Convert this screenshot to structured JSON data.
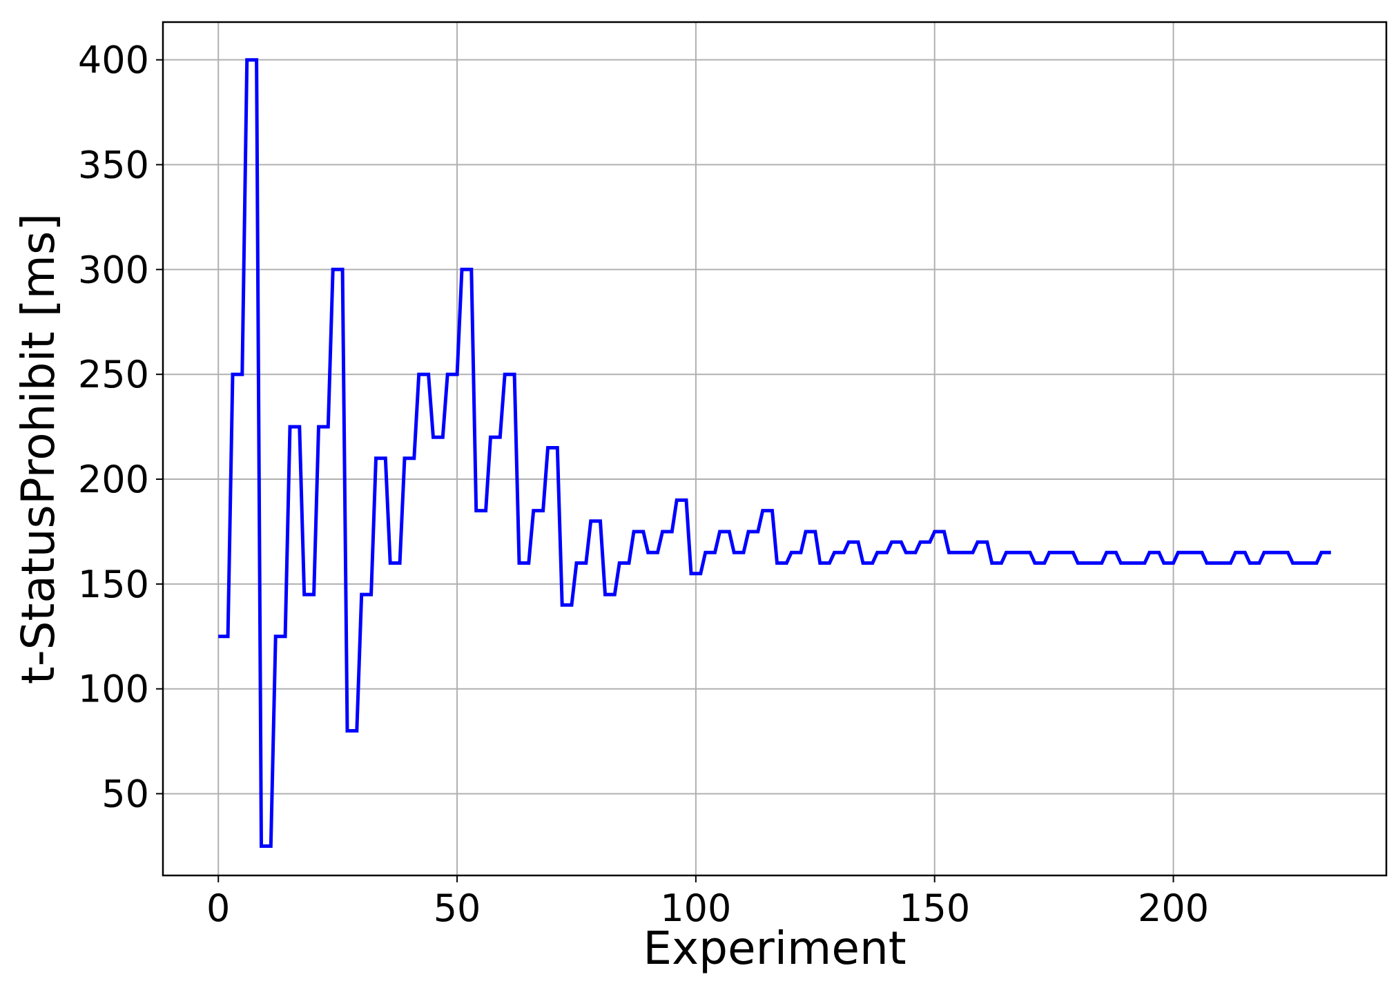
{
  "chart_data": {
    "type": "line",
    "title": "",
    "xlabel": "Experiment",
    "ylabel": "t-StatusProhibit [ms]",
    "xlim": [
      -11.6,
      244.6
    ],
    "ylim": [
      11,
      418
    ],
    "xticks": [
      0,
      50,
      100,
      150,
      200
    ],
    "yticks": [
      50,
      100,
      150,
      200,
      250,
      300,
      350,
      400
    ],
    "grid": true,
    "legend": "none",
    "series": [
      {
        "color": "#0000ff",
        "x": [
          0,
          2,
          3,
          5,
          6,
          8,
          9,
          11,
          12,
          14,
          15,
          17,
          18,
          20,
          21,
          23,
          24,
          26,
          27,
          29,
          30,
          32,
          33,
          35,
          36,
          38,
          39,
          41,
          42,
          44,
          45,
          47,
          48,
          50,
          51,
          53,
          54,
          56,
          57,
          59,
          60,
          62,
          63,
          65,
          66,
          68,
          69,
          71,
          72,
          74,
          75,
          77,
          78,
          80,
          81,
          83,
          84,
          86,
          87,
          89,
          90,
          92,
          93,
          95,
          96,
          98,
          99,
          101,
          102,
          104,
          105,
          107,
          108,
          110,
          111,
          113,
          114,
          116,
          117,
          119,
          120,
          122,
          123,
          125,
          126,
          128,
          129,
          131,
          132,
          134,
          135,
          137,
          138,
          140,
          141,
          143,
          144,
          146,
          147,
          149,
          150,
          152,
          153,
          155,
          156,
          158,
          159,
          161,
          162,
          164,
          165,
          167,
          168,
          170,
          171,
          173,
          174,
          176,
          177,
          179,
          180,
          182,
          183,
          185,
          186,
          188,
          189,
          191,
          192,
          194,
          195,
          197,
          198,
          200,
          201,
          203,
          204,
          206,
          207,
          209,
          210,
          212,
          213,
          215,
          216,
          218,
          219,
          221,
          222,
          224,
          225,
          227,
          228,
          230,
          231,
          233
        ],
        "y": [
          125,
          125,
          250,
          250,
          400,
          400,
          25,
          25,
          125,
          125,
          225,
          225,
          145,
          145,
          225,
          225,
          300,
          300,
          80,
          80,
          145,
          145,
          210,
          210,
          160,
          160,
          210,
          210,
          250,
          250,
          220,
          220,
          250,
          250,
          300,
          300,
          185,
          185,
          220,
          220,
          250,
          250,
          160,
          160,
          185,
          185,
          215,
          215,
          140,
          140,
          160,
          160,
          180,
          180,
          145,
          145,
          160,
          160,
          175,
          175,
          165,
          165,
          175,
          175,
          190,
          190,
          155,
          155,
          165,
          165,
          175,
          175,
          165,
          165,
          175,
          175,
          185,
          185,
          160,
          160,
          165,
          165,
          175,
          175,
          160,
          160,
          165,
          165,
          170,
          170,
          160,
          160,
          165,
          165,
          170,
          170,
          165,
          165,
          170,
          170,
          175,
          175,
          165,
          165,
          165,
          165,
          170,
          170,
          160,
          160,
          165,
          165,
          165,
          165,
          160,
          160,
          165,
          165,
          165,
          165,
          160,
          160,
          160,
          160,
          165,
          165,
          160,
          160,
          160,
          160,
          165,
          165,
          160,
          160,
          165,
          165,
          165,
          165,
          160,
          160,
          160,
          160,
          165,
          165,
          160,
          160,
          165,
          165,
          165,
          165,
          160,
          160,
          160,
          160,
          165,
          165
        ]
      }
    ]
  }
}
